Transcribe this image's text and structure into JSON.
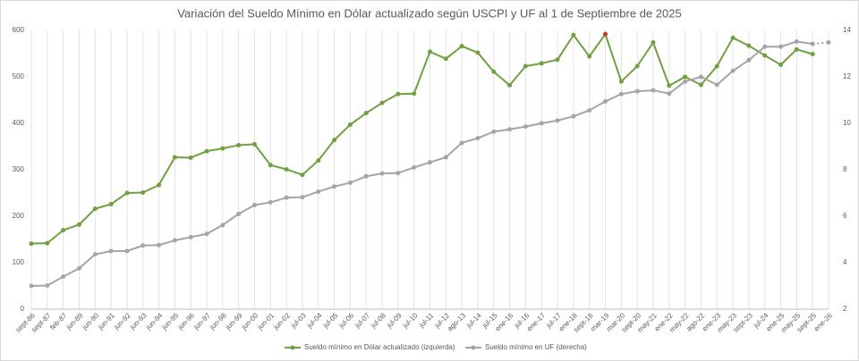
{
  "chart_data": {
    "type": "line",
    "title": "Variación del Sueldo Mínimo en Dólar actualizado según USCPI y UF al 1 de Septiembre de 2025",
    "categories": [
      "sept-86",
      "sept-87",
      "feb-87",
      "jun-89",
      "jun-90",
      "jun-91",
      "jun-92",
      "jun-93",
      "jun-94",
      "jun-95",
      "jun-96",
      "jun-97",
      "jun-98",
      "jun-99",
      "jun-00",
      "jun-01",
      "jun-02",
      "jul-03",
      "jul-04",
      "jul-05",
      "jul-06",
      "jul-07",
      "jul-08",
      "jul-09",
      "jul-10",
      "jul-11",
      "jul-12",
      "ago-13",
      "jul-14",
      "jul-15",
      "ene-16",
      "jul-16",
      "ene-17",
      "jul-17",
      "ene-18",
      "sept-18",
      "mar-19",
      "mar-20",
      "sept-20",
      "may-21",
      "ene-22",
      "may-22",
      "ago-22",
      "ene-23",
      "may-23",
      "sept-23",
      "jul-24",
      "ene-25",
      "may-25",
      "sept-25",
      "ene-26"
    ],
    "series": [
      {
        "name": "Sueldo mínimo en Dólar actualizado (izquierda)",
        "color": "#70a040",
        "axis": "y",
        "highlight_index": 36,
        "highlight_color": "#c0392b",
        "values": [
          141,
          142,
          170,
          182,
          216,
          226,
          250,
          251,
          267,
          327,
          326,
          340,
          346,
          353,
          355,
          310,
          301,
          289,
          320,
          364,
          397,
          422,
          444,
          463,
          464,
          554,
          539,
          566,
          552,
          511,
          482,
          523,
          529,
          537,
          590,
          544,
          592,
          490,
          523,
          574,
          481,
          500,
          483,
          523,
          584,
          567,
          546,
          526,
          559,
          549,
          null
        ]
      },
      {
        "name": "Sueldo mínimo en UF (derecha)",
        "color": "#a5a5a5",
        "axis": "y2",
        "values": [
          3.0,
          3.02,
          3.4,
          3.76,
          4.36,
          4.5,
          4.5,
          4.74,
          4.76,
          4.96,
          5.1,
          5.24,
          5.62,
          6.1,
          6.48,
          6.6,
          6.8,
          6.82,
          7.06,
          7.28,
          7.44,
          7.72,
          7.84,
          7.86,
          8.1,
          8.32,
          8.54,
          9.16,
          9.36,
          9.64,
          9.74,
          9.86,
          10.0,
          10.12,
          10.3,
          10.56,
          10.94,
          11.26,
          11.38,
          11.42,
          11.28,
          11.8,
          12.0,
          11.66,
          12.26,
          12.72,
          13.3,
          13.3,
          13.52,
          13.42,
          13.48
        ]
      }
    ],
    "ylim": [
      0,
      600
    ],
    "yticks": [
      0,
      100,
      200,
      300,
      400,
      500,
      600
    ],
    "y2lim": [
      2,
      14
    ],
    "y2ticks": [
      2,
      4,
      6,
      8,
      10,
      12,
      14
    ],
    "grid": "x",
    "legend": "bottom"
  }
}
